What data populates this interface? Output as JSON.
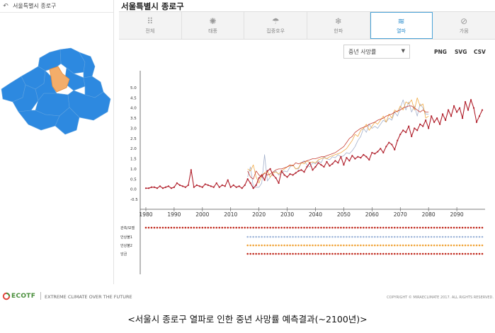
{
  "sidebar": {
    "back_icon": "undo-arrow-icon",
    "region": "서울특별시 종로구"
  },
  "main": {
    "title": "서울특별시 종로구",
    "tabs": [
      {
        "label": "전체",
        "icon": "grid-dots-icon",
        "glyph": "⠿"
      },
      {
        "label": "태풍",
        "icon": "typhoon-icon",
        "glyph": "✺"
      },
      {
        "label": "집중호우",
        "icon": "rain-cloud-icon",
        "glyph": "☂"
      },
      {
        "label": "한파",
        "icon": "snowflake-icon",
        "glyph": "❄"
      },
      {
        "label": "열파",
        "icon": "heatwave-icon",
        "glyph": "≋",
        "active": true
      },
      {
        "label": "가뭄",
        "icon": "drought-icon",
        "glyph": "⊘"
      }
    ],
    "select_value": "중년 사망률",
    "export": [
      "PNG",
      "SVG",
      "CSV"
    ]
  },
  "chart_data": {
    "type": "line",
    "title": "",
    "xlabel": "",
    "ylabel": "",
    "xlim": [
      1978,
      2100
    ],
    "ylim": [
      -0.5,
      5.0
    ],
    "yticks": [
      "5.0",
      "4.5",
      "4.0",
      "3.5",
      "3.0",
      "2.5",
      "2.0",
      "1.5",
      "1.0",
      "0.5",
      "0.0",
      "-0.5"
    ],
    "xticks": [
      "1980",
      "1990",
      "2000",
      "2010",
      "2020",
      "2030",
      "2040",
      "2050",
      "2060",
      "2070",
      "2080",
      "2090"
    ],
    "series": [
      {
        "name": "관측/모델",
        "color": "#b01e2a",
        "start": 1980,
        "values": [
          0.05,
          0.05,
          0.1,
          0.1,
          0.05,
          0.15,
          0.05,
          0.1,
          0.15,
          0.05,
          0.1,
          0.3,
          0.2,
          0.15,
          0.1,
          0.2,
          0.95,
          0.1,
          0.2,
          0.15,
          0.1,
          0.25,
          0.2,
          0.15,
          0.1,
          0.3,
          0.1,
          0.2,
          0.15,
          0.45,
          0.1,
          0.2,
          0.1,
          0.15,
          0.05,
          0.2,
          0.5,
          0.3,
          0.05,
          0.2,
          0.55,
          0.7,
          0.45,
          0.9,
          1.0,
          0.7,
          0.55,
          0.3,
          0.9,
          0.7,
          0.6,
          0.75,
          0.7,
          0.8,
          0.9,
          0.95,
          0.85,
          1.1,
          1.3,
          0.95,
          1.1,
          1.3,
          1.2,
          1.1,
          1.35,
          1.15,
          1.25,
          1.4,
          1.3,
          1.6,
          1.2,
          1.55,
          1.4,
          1.65,
          1.5,
          1.6,
          1.55,
          1.7,
          1.6,
          1.45,
          1.8,
          1.75,
          1.85,
          2.0,
          1.8,
          2.1,
          2.3,
          2.2,
          1.95,
          2.4,
          2.7,
          2.9,
          2.8,
          3.1,
          2.6,
          3.0,
          2.9,
          3.2,
          3.1,
          3.4,
          3.0,
          3.6,
          3.3,
          3.5,
          3.2,
          3.7,
          3.4,
          3.9,
          3.6,
          4.1,
          3.8,
          4.0,
          3.5,
          4.3,
          3.9,
          4.4,
          4.0,
          3.3,
          3.6,
          3.9
        ]
      },
      {
        "name": "안상불1",
        "color": "#9aa8c7",
        "start": 2016,
        "values": [
          0.6,
          1.1,
          0.1,
          0.1,
          0.1,
          0.3,
          1.7,
          0.4,
          0.6,
          0.8,
          0.9,
          0.7,
          0.8,
          0.9,
          0.85,
          1.1,
          1.2,
          1.0,
          1.0,
          1.3,
          1.4,
          1.2,
          1.1,
          1.3,
          1.25,
          1.4,
          1.3,
          1.6,
          1.5,
          1.45,
          1.6,
          1.55,
          1.7,
          1.6,
          1.65,
          1.8,
          1.75,
          1.9,
          2.1,
          2.4,
          2.6,
          3.0,
          2.8,
          3.2,
          3.0,
          3.1,
          3.0,
          3.2,
          3.4,
          3.3,
          3.5,
          3.4,
          3.8,
          3.6,
          4.0,
          4.4,
          3.9,
          4.3,
          3.8,
          4.1,
          3.6,
          4.2,
          4.0,
          3.7,
          3.7
        ]
      },
      {
        "name": "안상불2",
        "color": "#f0a132",
        "start": 2016,
        "values": [
          1.0,
          0.9,
          1.2,
          0.6,
          0.3,
          0.7,
          0.8,
          0.9,
          0.6,
          0.8,
          0.85,
          0.75,
          0.9,
          1.0,
          1.1,
          1.15,
          1.2,
          1.0,
          1.05,
          1.3,
          1.25,
          1.4,
          1.3,
          1.35,
          1.3,
          1.45,
          1.5,
          1.55,
          1.5,
          1.6,
          1.65,
          1.7,
          1.75,
          1.8,
          1.9,
          2.0,
          2.2,
          2.4,
          2.7,
          2.6,
          2.9,
          3.0,
          3.2,
          2.9,
          3.1,
          3.3,
          3.2,
          3.4,
          3.6,
          3.3,
          3.7,
          3.5,
          3.9,
          3.8,
          4.1,
          3.9,
          4.3,
          4.2,
          4.4,
          3.9,
          4.5,
          4.1,
          4.2,
          3.5,
          3.6
        ]
      },
      {
        "name": "앙금",
        "color": "#c0281c",
        "start": 2016,
        "values": [
          0.9,
          0.6,
          0.5,
          0.9,
          0.7,
          0.6,
          0.8,
          0.7,
          0.75,
          0.85,
          0.95,
          1.0,
          1.0,
          1.05,
          1.1,
          1.2,
          1.15,
          1.3,
          1.25,
          1.3,
          1.35,
          1.4,
          1.45,
          1.5,
          1.5,
          1.55,
          1.6,
          1.6,
          1.65,
          1.7,
          1.75,
          1.8,
          1.9,
          2.0,
          2.1,
          2.3,
          2.5,
          2.6,
          2.8,
          2.9,
          3.0,
          3.05,
          3.1,
          3.2,
          3.25,
          3.3,
          3.4,
          3.45,
          3.5,
          3.6,
          3.65,
          3.7,
          3.8,
          3.85,
          3.9,
          4.0,
          4.05,
          4.1,
          4.1,
          4.0,
          3.9,
          3.8,
          3.9,
          3.8,
          3.8
        ]
      }
    ],
    "legend_rows": [
      {
        "name": "관측/모델",
        "start": 1980
      },
      {
        "name": "안상불1",
        "start": 2016
      },
      {
        "name": "안상불2",
        "start": 2016
      },
      {
        "name": "앙금",
        "start": 2016
      }
    ]
  },
  "footer": {
    "logo": "ECOTF",
    "logo_icon": "ecotf-logo-icon",
    "tagline": "EXTREME CLIMATE OVER THE FUTURE",
    "copyright": "COPYRIGHT © MIRAECLIMATE 2017. ALL RIGHTS RESERVED."
  },
  "caption": "<서울시 종로구 열파로 인한 중년 사망률 예측결과(~2100년)>"
}
